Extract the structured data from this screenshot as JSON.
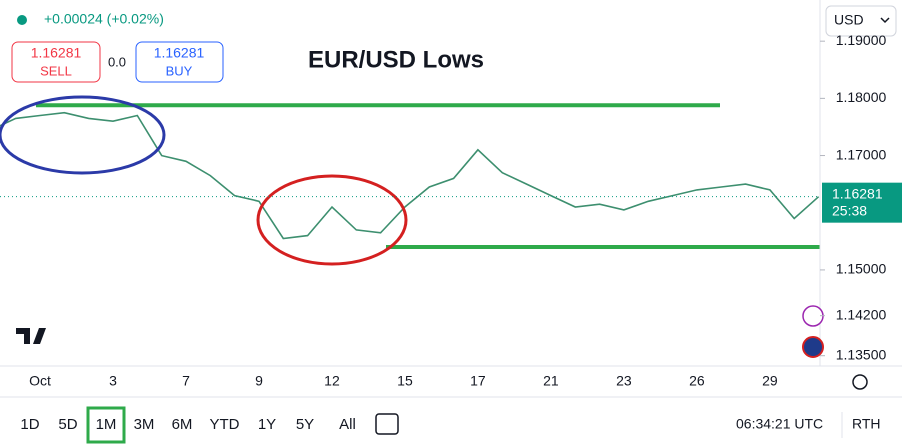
{
  "header": {
    "change": "+0.00024 (+0.02%)",
    "sell_price": "1.16281",
    "sell_label": "SELL",
    "spread": "0.0",
    "buy_price": "1.16281",
    "buy_label": "BUY",
    "currency": "USD"
  },
  "chart_data": {
    "type": "line",
    "title": "EUR/USD Lows",
    "categories": [
      null,
      null,
      "Oct",
      null,
      null,
      "3",
      null,
      null,
      "7",
      null,
      null,
      "9",
      null,
      null,
      "12",
      null,
      null,
      "15",
      null,
      null,
      "17",
      null,
      null,
      "21",
      null,
      null,
      "23",
      null,
      null,
      "26",
      null,
      null,
      "29",
      null,
      null
    ],
    "values": [
      1.1745,
      1.1765,
      1.177,
      1.1775,
      1.1765,
      1.176,
      1.177,
      1.17,
      1.169,
      1.1665,
      1.163,
      1.162,
      1.1555,
      1.156,
      1.161,
      1.157,
      1.1565,
      1.161,
      1.1645,
      1.166,
      1.171,
      1.167,
      1.165,
      1.163,
      1.161,
      1.1615,
      1.1605,
      1.162,
      1.163,
      1.164,
      1.1645,
      1.165,
      1.164,
      1.159,
      1.16281
    ],
    "color": "#3d8f6f",
    "ylim": [
      1.1332,
      1.1972
    ],
    "yticks": [
      {
        "value": 1.19,
        "label": "1.19000"
      },
      {
        "value": 1.18,
        "label": "1.18000"
      },
      {
        "value": 1.17,
        "label": "1.17000"
      },
      {
        "value": 1.15,
        "label": "1.15000"
      },
      {
        "value": 1.142,
        "label": "1.14200"
      },
      {
        "value": 1.135,
        "label": "1.13500"
      }
    ],
    "levels": [
      {
        "value": 1.1788,
        "color": "#2eaa4a"
      },
      {
        "value": 1.154,
        "color": "#2eaa4a"
      }
    ],
    "price_tag": {
      "price": "1.16281",
      "countdown": "25:38"
    }
  },
  "toolbar": {
    "ranges": [
      "1D",
      "5D",
      "1M",
      "3M",
      "6M",
      "YTD",
      "1Y",
      "5Y",
      "All"
    ],
    "active": "1M",
    "time": "06:34:21 UTC",
    "session": "RTH"
  }
}
